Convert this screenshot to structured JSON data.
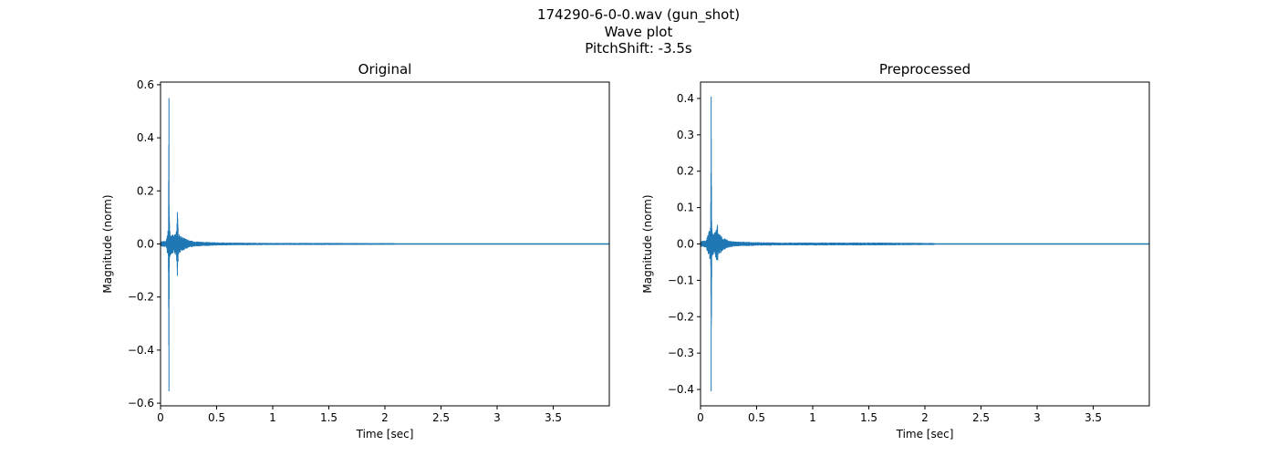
{
  "figure": {
    "title_line1": "174290-6-0-0.wav (gun_shot)",
    "title_line2": "Wave plot",
    "title_line3": "PitchShift: -3.5s"
  },
  "chart_data": [
    {
      "type": "line",
      "title": "Original",
      "xlabel": "Time [sec]",
      "ylabel": "Magnitude (norm)",
      "xlim": [
        0,
        4.0
      ],
      "ylim": [
        -0.61,
        0.61
      ],
      "xticks": [
        0,
        0.5,
        1,
        1.5,
        2,
        2.5,
        3,
        3.5
      ],
      "xtick_labels": [
        "0",
        "0.5",
        "1",
        "1.5",
        "2",
        "2.5",
        "3",
        "3.5"
      ],
      "yticks": [
        0.6,
        0.4,
        0.2,
        0.0,
        -0.2,
        -0.4,
        -0.6
      ],
      "ytick_labels": [
        "0.6",
        "0.4",
        "0.2",
        "0.0",
        "−0.2",
        "−0.4",
        "−0.6"
      ],
      "grid": false,
      "color": "#1f77b4",
      "envelope": {
        "t": [
          0.0,
          0.05,
          0.07,
          0.075,
          0.08,
          0.09,
          0.1,
          0.12,
          0.14,
          0.15,
          0.16,
          0.18,
          0.2,
          0.25,
          0.3,
          0.4,
          0.5,
          0.7,
          1.0,
          1.5,
          2.0,
          2.08,
          2.1,
          4.0
        ],
        "amp": [
          0.01,
          0.012,
          0.06,
          0.55,
          0.06,
          0.04,
          0.04,
          0.03,
          0.05,
          0.12,
          0.04,
          0.03,
          0.025,
          0.015,
          0.01,
          0.008,
          0.006,
          0.005,
          0.004,
          0.004,
          0.003,
          0.003,
          0.0,
          0.0
        ],
        "neg": [
          0.01,
          0.012,
          0.06,
          0.555,
          0.06,
          0.04,
          0.04,
          0.03,
          0.05,
          0.12,
          0.04,
          0.03,
          0.025,
          0.015,
          0.01,
          0.008,
          0.006,
          0.005,
          0.004,
          0.004,
          0.003,
          0.003,
          0.0,
          0.0
        ]
      }
    },
    {
      "type": "line",
      "title": "Preprocessed",
      "xlabel": "Time [sec]",
      "ylabel": "Magnitude (norm)",
      "xlim": [
        0,
        4.0
      ],
      "ylim": [
        -0.445,
        0.445
      ],
      "xticks": [
        0,
        0.5,
        1,
        1.5,
        2,
        2.5,
        3,
        3.5
      ],
      "xtick_labels": [
        "0",
        "0.5",
        "1",
        "1.5",
        "2",
        "2.5",
        "3",
        "3.5"
      ],
      "yticks": [
        0.4,
        0.3,
        0.2,
        0.1,
        0.0,
        -0.1,
        -0.2,
        -0.3,
        -0.4
      ],
      "ytick_labels": [
        "0.4",
        "0.3",
        "0.2",
        "0.1",
        "0.0",
        "−0.1",
        "−0.2",
        "−0.3",
        "−0.4"
      ],
      "grid": false,
      "color": "#1f77b4",
      "envelope": {
        "t": [
          0.0,
          0.05,
          0.08,
          0.09,
          0.095,
          0.1,
          0.11,
          0.12,
          0.14,
          0.15,
          0.16,
          0.18,
          0.2,
          0.25,
          0.3,
          0.4,
          0.5,
          0.7,
          1.0,
          1.5,
          2.0,
          2.08,
          2.1,
          4.0
        ],
        "amp": [
          0.008,
          0.01,
          0.04,
          0.05,
          0.405,
          0.05,
          0.03,
          0.03,
          0.04,
          0.06,
          0.03,
          0.025,
          0.018,
          0.01,
          0.007,
          0.006,
          0.005,
          0.004,
          0.004,
          0.004,
          0.003,
          0.003,
          0.0,
          0.0
        ],
        "neg": [
          0.008,
          0.01,
          0.04,
          0.05,
          0.405,
          0.05,
          0.03,
          0.03,
          0.04,
          0.06,
          0.03,
          0.025,
          0.018,
          0.01,
          0.007,
          0.006,
          0.005,
          0.004,
          0.004,
          0.004,
          0.003,
          0.003,
          0.0,
          0.0
        ]
      }
    }
  ]
}
